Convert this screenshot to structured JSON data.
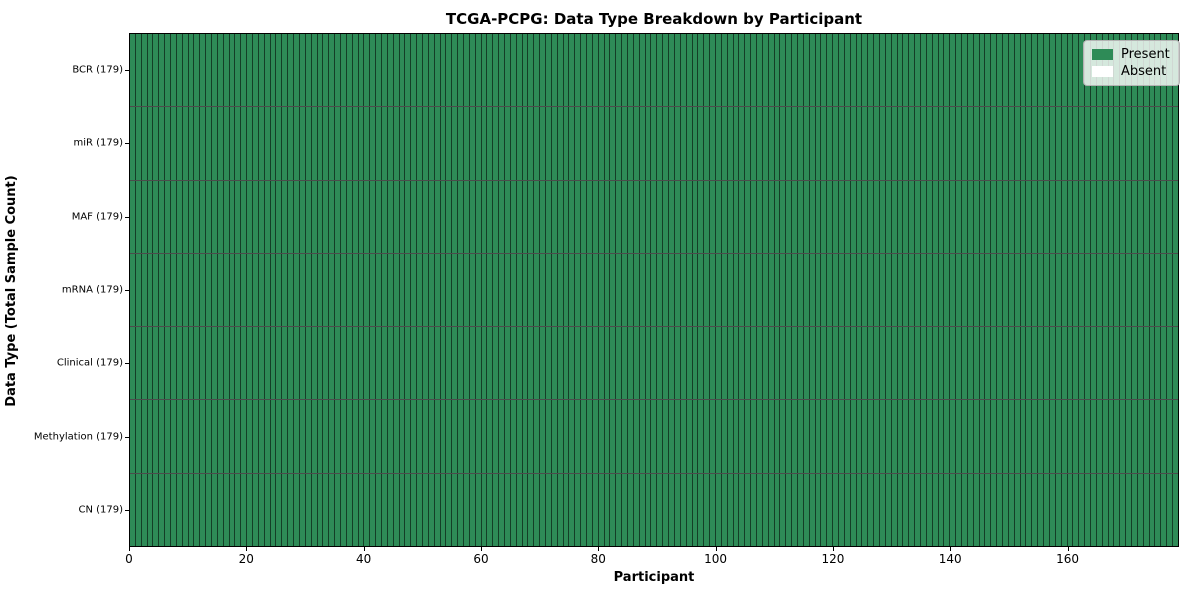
{
  "title": "TCGA-PCPG: Data Type Breakdown by Participant",
  "colors": {
    "present": "#2e8b57",
    "absent": "#ffffff",
    "cell_edge": "rgba(0,0,0,0.55)",
    "spine": "#000000",
    "legend_border": "#b3b3b3"
  },
  "legend": {
    "items": [
      {
        "key": "present",
        "label": "Present"
      },
      {
        "key": "absent",
        "label": "Absent"
      }
    ]
  },
  "chart_data": {
    "type": "heatmap",
    "title": "TCGA-PCPG: Data Type Breakdown by Participant",
    "xlabel": "Participant",
    "ylabel": "Data Type (Total Sample Count)",
    "xlim": [
      0,
      179
    ],
    "x_ticks": [
      0,
      20,
      40,
      60,
      80,
      100,
      120,
      140,
      160
    ],
    "n_participants": 179,
    "legend_position": "upper right",
    "value_legend": {
      "present": "Present",
      "absent": "Absent"
    },
    "rows": [
      {
        "label": "BCR (179)",
        "data_type": "BCR",
        "total_samples": 179,
        "present_count": 179,
        "absent_count": 0
      },
      {
        "label": "miR (179)",
        "data_type": "miR",
        "total_samples": 179,
        "present_count": 179,
        "absent_count": 0
      },
      {
        "label": "MAF (179)",
        "data_type": "MAF",
        "total_samples": 179,
        "present_count": 179,
        "absent_count": 0
      },
      {
        "label": "mRNA (179)",
        "data_type": "mRNA",
        "total_samples": 179,
        "present_count": 179,
        "absent_count": 0
      },
      {
        "label": "Clinical (179)",
        "data_type": "Clinical",
        "total_samples": 179,
        "present_count": 179,
        "absent_count": 0
      },
      {
        "label": "Methylation (179)",
        "data_type": "Methylation",
        "total_samples": 179,
        "present_count": 179,
        "absent_count": 0
      },
      {
        "label": "CN (179)",
        "data_type": "CN",
        "total_samples": 179,
        "present_count": 179,
        "absent_count": 0
      }
    ]
  }
}
